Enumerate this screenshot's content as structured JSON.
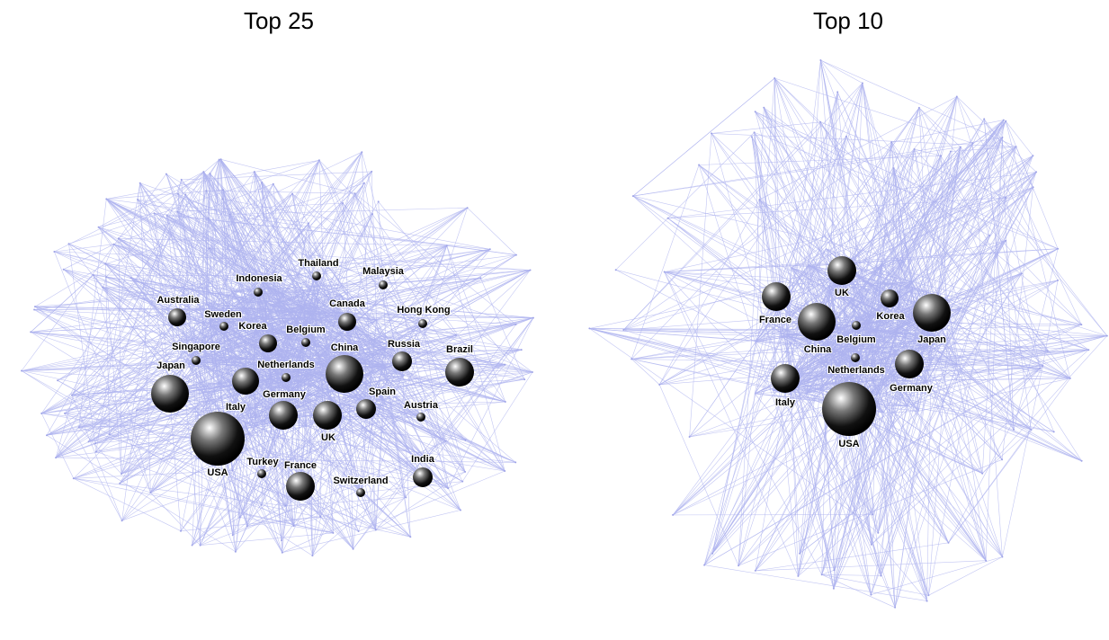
{
  "panels": [
    {
      "title": "Top 25",
      "nodes": [
        "Thailand",
        "Malaysia",
        "Indonesia",
        "Australia",
        "Canada",
        "Hong Kong",
        "Sweden",
        "Korea",
        "Belgium",
        "Singapore",
        "Russia",
        "China",
        "Brazil",
        "Japan",
        "Netherlands",
        "Germany",
        "Spain",
        "Austria",
        "Italy",
        "UK",
        "USA",
        "Turkey",
        "France",
        "India",
        "Switzerland"
      ]
    },
    {
      "title": "Top 10",
      "nodes": [
        "UK",
        "France",
        "Korea",
        "Japan",
        "China",
        "Belgium",
        "Netherlands",
        "Germany",
        "Italy",
        "USA"
      ]
    }
  ]
}
